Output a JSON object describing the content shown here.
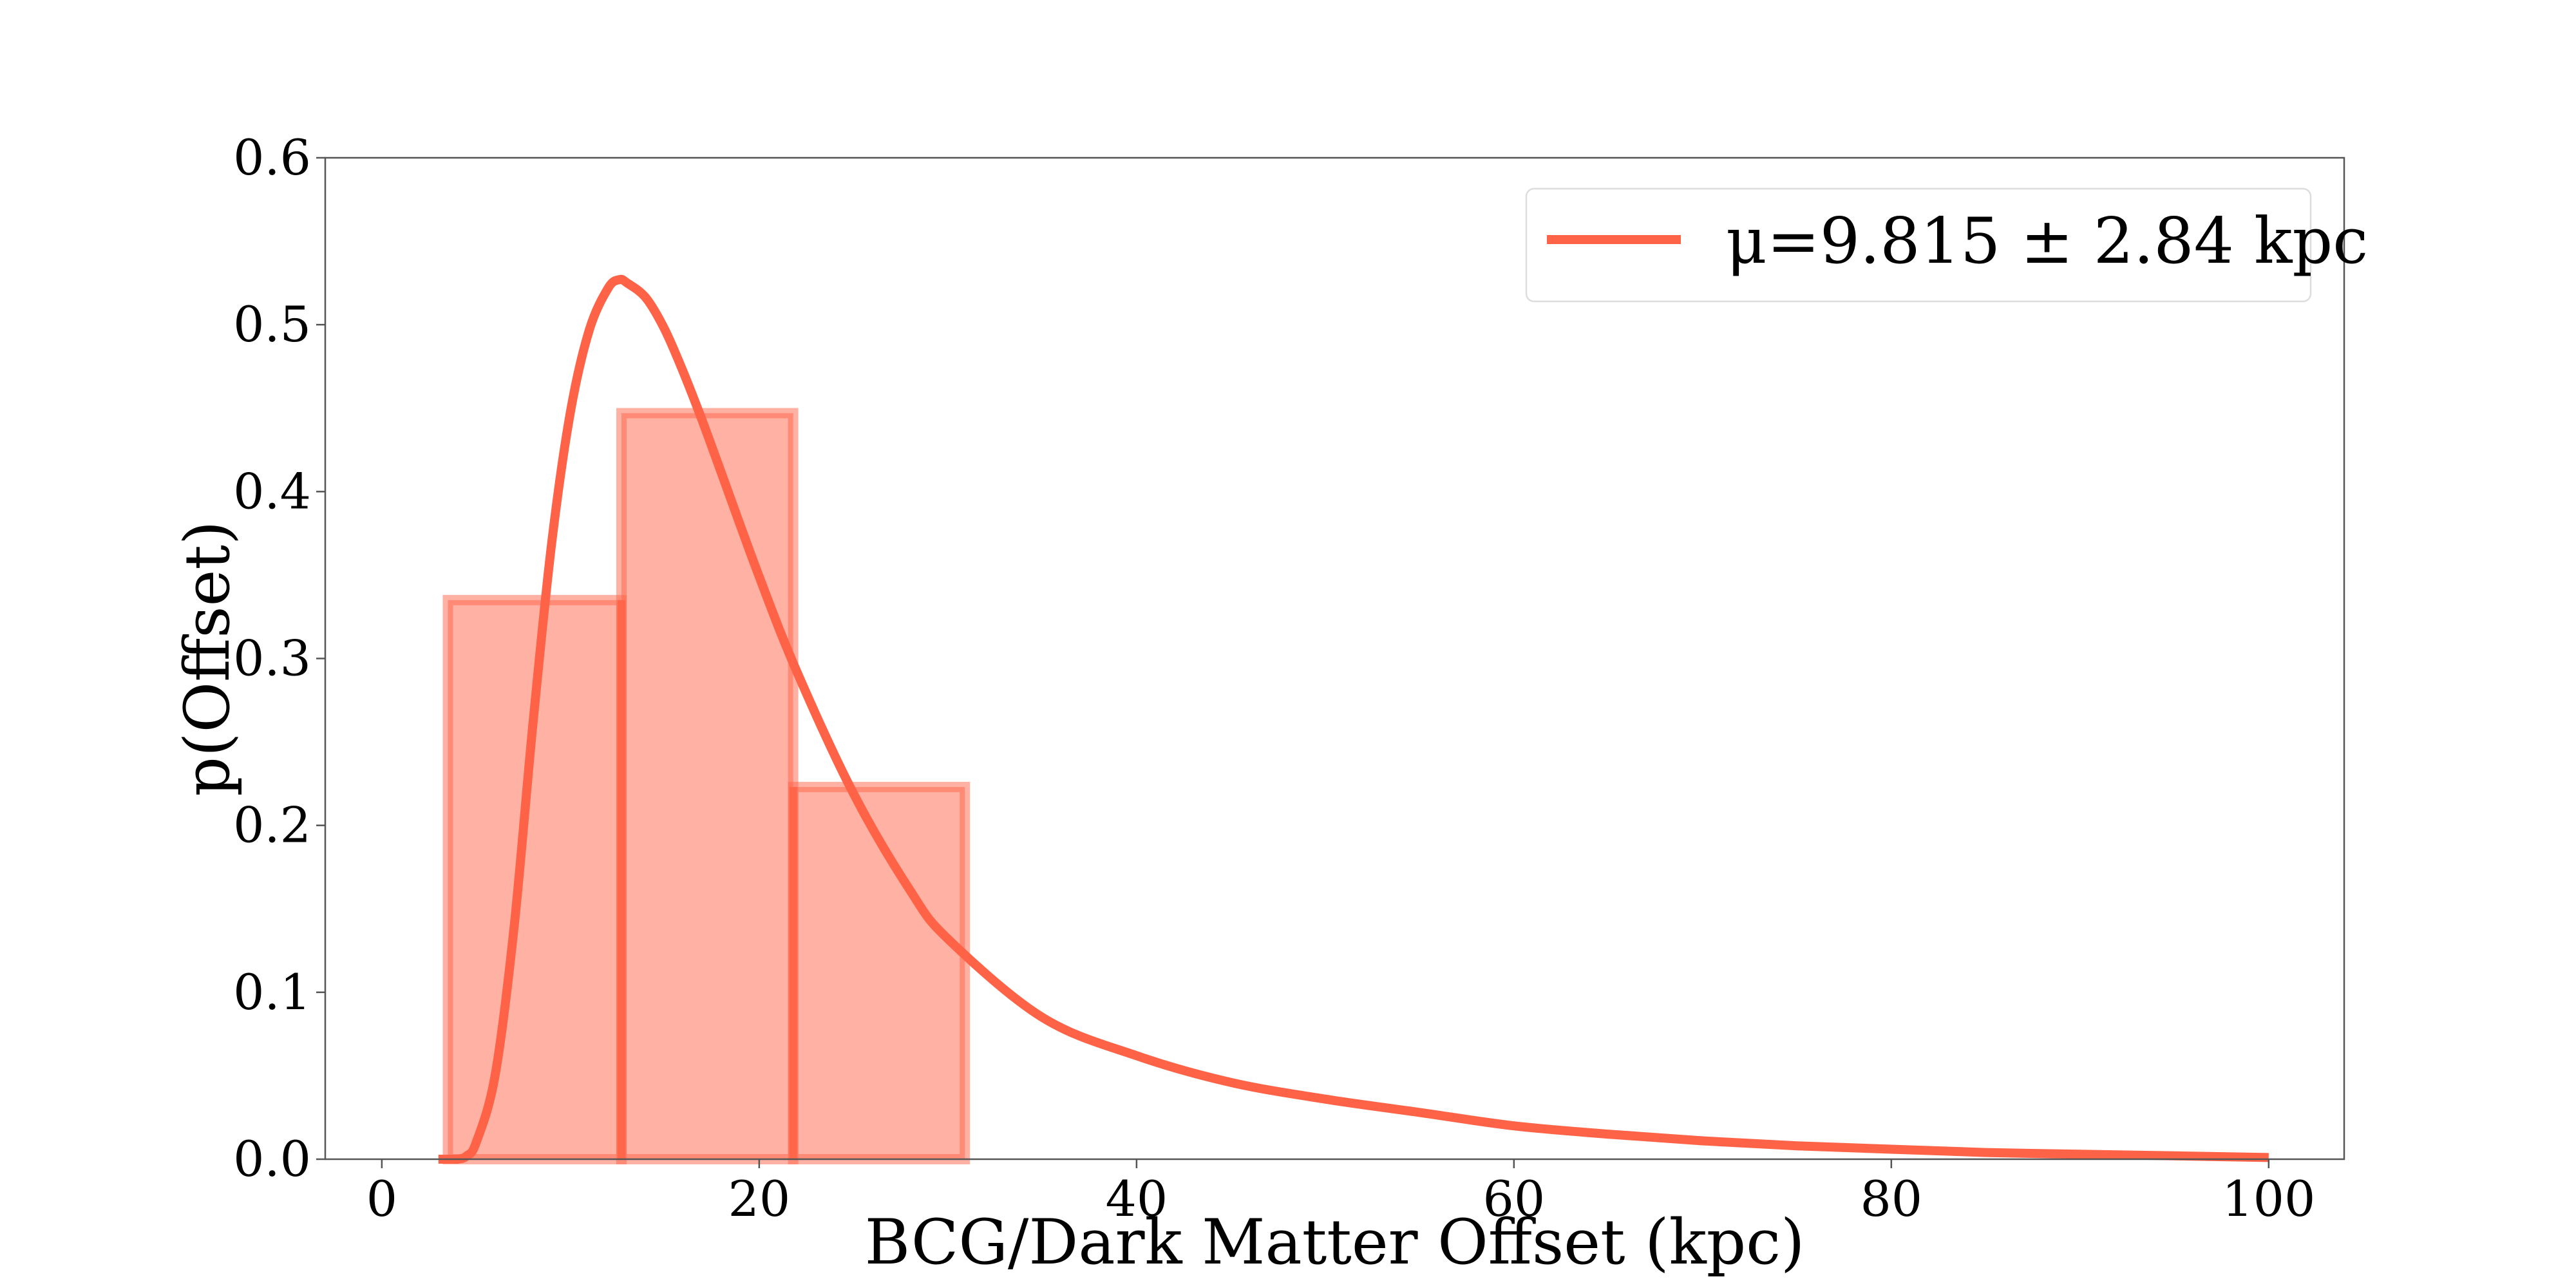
{
  "chart_data": {
    "type": "bar",
    "title": "",
    "xlabel": "BCG/Dark Matter Offset (kpc)",
    "ylabel": "p(Offset)",
    "xlim": [
      -3,
      104
    ],
    "ylim": [
      0,
      0.6
    ],
    "xticks": [
      0,
      20,
      40,
      60,
      80,
      100
    ],
    "yticks": [
      0.0,
      0.1,
      0.2,
      0.3,
      0.4,
      0.5,
      0.6
    ],
    "x_tick_labels": [
      "0",
      "20",
      "40",
      "60",
      "80",
      "100"
    ],
    "y_tick_labels": [
      "0.0",
      "0.1",
      "0.2",
      "0.3",
      "0.4",
      "0.5",
      "0.6"
    ],
    "grid": false,
    "histogram": {
      "bins": [
        {
          "x0": 3.5,
          "x1": 12.7,
          "density": 0.335
        },
        {
          "x0": 12.7,
          "x1": 21.8,
          "density": 0.447
        },
        {
          "x0": 21.8,
          "x1": 30.9,
          "density": 0.223
        }
      ],
      "color": "#ff6347"
    },
    "series": [
      {
        "name": "μ=9.815 ± 2.84 kpc",
        "type": "line",
        "color": "#ff6347",
        "x": [
          3,
          4,
          4.5,
          5,
          6,
          7,
          8,
          9,
          10,
          11,
          12,
          12.6,
          13,
          14,
          15,
          16,
          17,
          18,
          20,
          22,
          25,
          28,
          30,
          35,
          40,
          45,
          50,
          55,
          60,
          65,
          70,
          75,
          80,
          85,
          90,
          95,
          100
        ],
        "y": [
          0.0,
          0.0,
          0.002,
          0.01,
          0.05,
          0.138,
          0.26,
          0.369,
          0.448,
          0.497,
          0.522,
          0.527,
          0.525,
          0.516,
          0.497,
          0.471,
          0.442,
          0.411,
          0.349,
          0.292,
          0.219,
          0.161,
          0.132,
          0.085,
          0.062,
          0.046,
          0.036,
          0.028,
          0.02,
          0.015,
          0.011,
          0.008,
          0.006,
          0.004,
          0.003,
          0.002,
          0.001
        ]
      }
    ],
    "legend": {
      "location": "upper right",
      "label": "μ=9.815 ± 2.84 kpc"
    }
  }
}
